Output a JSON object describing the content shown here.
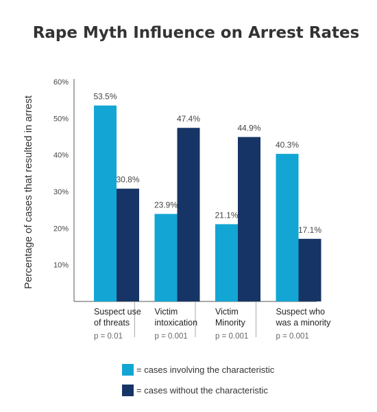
{
  "chart_data": {
    "type": "bar",
    "title": "Rape Myth Influence on Arrest Rates",
    "xlabel": "",
    "ylabel": "Percentage of cases that resulted in arrest",
    "ylim": [
      0,
      60
    ],
    "yticks": [
      "10%",
      "20%",
      "30%",
      "40%",
      "50%",
      "60%"
    ],
    "ytick_values": [
      10,
      20,
      30,
      40,
      50,
      60
    ],
    "grid": false,
    "legend_position": "bottom",
    "categories": [
      [
        "Suspect use",
        "of threats"
      ],
      [
        "Victim",
        "intoxication"
      ],
      [
        "Victim",
        "Minority"
      ],
      [
        "Suspect who",
        "was a minority"
      ]
    ],
    "p_values": [
      "p = 0.01",
      "p = 0.001",
      "p = 0.001",
      "p = 0.001"
    ],
    "series": [
      {
        "values": [
          53.5,
          23.9,
          21.1,
          40.3
        ],
        "labels": [
          "53.5%",
          "23.9%",
          "21.1%",
          "40.3%"
        ],
        "color": "#13a6d4"
      },
      {
        "values": [
          30.8,
          47.4,
          44.9,
          17.1
        ],
        "labels": [
          "30.8%",
          "47.4%",
          "44.9%",
          "17.1%"
        ],
        "color": "#163566"
      }
    ],
    "legend": [
      {
        "label": "= cases involving the characteristic",
        "color": "#13a6d4"
      },
      {
        "label": "= cases without the characteristic",
        "color": "#163566"
      }
    ],
    "axis_color": "#555555",
    "divider_color": "#aaaaaa"
  }
}
